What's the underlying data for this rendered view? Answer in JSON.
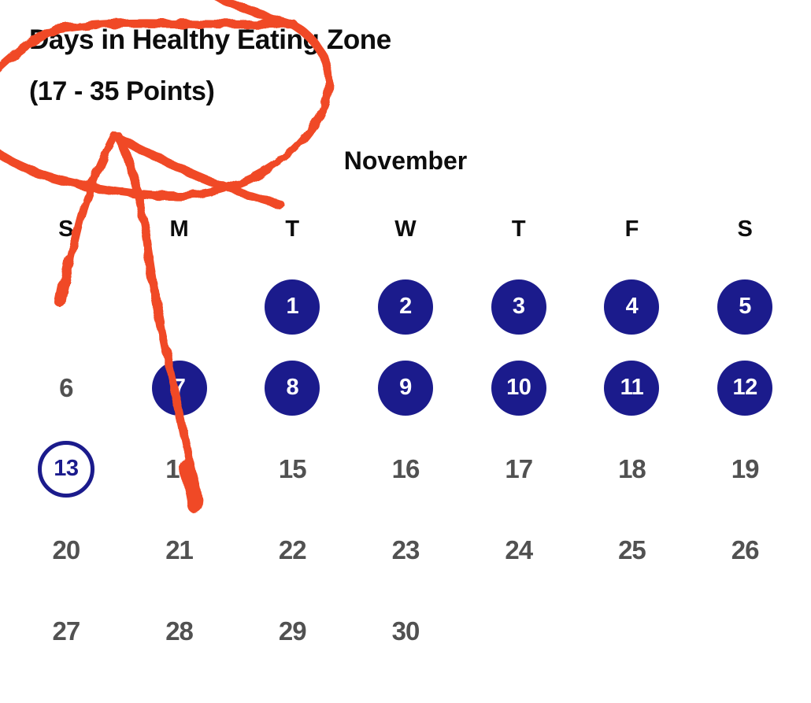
{
  "header": {
    "title_line1": "Days in Healthy Eating Zone",
    "title_line2": "(17 - 35 Points)"
  },
  "calendar": {
    "month_label": "November",
    "weekday_headers": [
      "S",
      "M",
      "T",
      "W",
      "T",
      "F",
      "S"
    ],
    "weeks": [
      [
        {
          "day": "",
          "state": "empty"
        },
        {
          "day": "",
          "state": "empty"
        },
        {
          "day": "1",
          "state": "filled"
        },
        {
          "day": "2",
          "state": "filled"
        },
        {
          "day": "3",
          "state": "filled"
        },
        {
          "day": "4",
          "state": "filled"
        },
        {
          "day": "5",
          "state": "filled"
        }
      ],
      [
        {
          "day": "6",
          "state": "plain"
        },
        {
          "day": "7",
          "state": "filled"
        },
        {
          "day": "8",
          "state": "filled"
        },
        {
          "day": "9",
          "state": "filled"
        },
        {
          "day": "10",
          "state": "filled"
        },
        {
          "day": "11",
          "state": "filled"
        },
        {
          "day": "12",
          "state": "filled"
        }
      ],
      [
        {
          "day": "13",
          "state": "outlined"
        },
        {
          "day": "14",
          "state": "plain"
        },
        {
          "day": "15",
          "state": "plain"
        },
        {
          "day": "16",
          "state": "plain"
        },
        {
          "day": "17",
          "state": "plain"
        },
        {
          "day": "18",
          "state": "plain"
        },
        {
          "day": "19",
          "state": "plain"
        }
      ],
      [
        {
          "day": "20",
          "state": "plain"
        },
        {
          "day": "21",
          "state": "plain"
        },
        {
          "day": "22",
          "state": "plain"
        },
        {
          "day": "23",
          "state": "plain"
        },
        {
          "day": "24",
          "state": "plain"
        },
        {
          "day": "25",
          "state": "plain"
        },
        {
          "day": "26",
          "state": "plain"
        }
      ],
      [
        {
          "day": "27",
          "state": "plain"
        },
        {
          "day": "28",
          "state": "plain"
        },
        {
          "day": "29",
          "state": "plain"
        },
        {
          "day": "30",
          "state": "plain"
        },
        {
          "day": "",
          "state": "empty"
        },
        {
          "day": "",
          "state": "empty"
        },
        {
          "day": "",
          "state": "empty"
        }
      ]
    ]
  },
  "annotation": {
    "name": "red-crayon-circle-and-down-arrow"
  },
  "colors": {
    "heading_text": "#0d0d0d",
    "day_circle_fill": "#1b1b8c",
    "day_circle_text": "#ffffff",
    "outlined_day_border": "#1b1b8c",
    "plain_day_text": "#515151",
    "annotation_red": "#f04a26"
  }
}
